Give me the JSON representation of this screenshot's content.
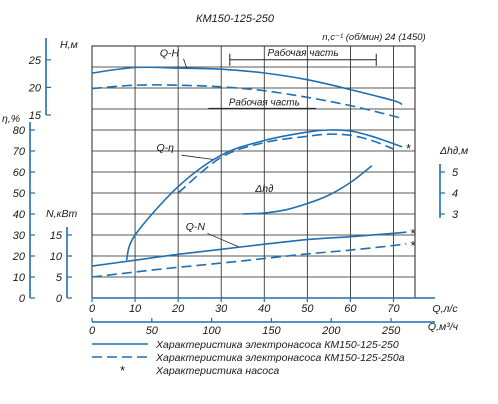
{
  "chart_data": {
    "type": "line",
    "title": "КМ150-125-250",
    "subtitle": "n,с⁻¹ (об/мин) 24 (1450)",
    "colors": {
      "line": "#1f6fb4",
      "grid": "#222222",
      "text": "#1a1a1a"
    },
    "x_axes": {
      "flow_ls": {
        "label": "Q,л/с",
        "range": [
          0,
          75
        ],
        "ticks": [
          0,
          10,
          20,
          30,
          40,
          50,
          60,
          70
        ]
      },
      "flow_m3h": {
        "label": "Q,м³/ч",
        "ticks": [
          0,
          50,
          100,
          150,
          200,
          250
        ]
      }
    },
    "y_axes": {
      "head": {
        "label": "H,м",
        "range": [
          15,
          27.5
        ],
        "ticks": [
          15,
          20,
          25
        ]
      },
      "efficiency": {
        "label": "η,%",
        "range": [
          0,
          80
        ],
        "ticks": [
          0,
          10,
          20,
          30,
          40,
          50,
          60,
          70,
          80
        ]
      },
      "power": {
        "label": "N,кВт",
        "range": [
          0,
          15
        ],
        "ticks": [
          0,
          5,
          10,
          15
        ]
      },
      "npsh": {
        "label": "Δh∂,м",
        "range": [
          3,
          5
        ],
        "ticks": [
          3,
          4,
          5
        ]
      }
    },
    "series": [
      {
        "axis": "head",
        "label": "Q-H",
        "style": "solid",
        "x": [
          0,
          10,
          20,
          30,
          40,
          50,
          60,
          70,
          72
        ],
        "y": [
          22.6,
          23.6,
          23.5,
          23.3,
          22.6,
          21.4,
          19.6,
          17.6,
          16.9
        ]
      },
      {
        "axis": "head",
        "style": "dashed",
        "x": [
          0,
          10,
          20,
          30,
          40,
          50,
          60,
          70,
          72
        ],
        "y": [
          19.8,
          20.4,
          20.4,
          20.1,
          19.4,
          18.2,
          16.7,
          14.8,
          14.3
        ]
      },
      {
        "axis": "efficiency",
        "label": "Q-η",
        "style": "solid",
        "x": [
          8,
          10,
          20,
          30,
          40,
          50,
          55,
          60,
          65,
          72
        ],
        "y": [
          18,
          30,
          53,
          68,
          75,
          79,
          80,
          79.5,
          77,
          72
        ]
      },
      {
        "axis": "efficiency",
        "style": "dashed",
        "x": [
          20,
          30,
          40,
          50,
          55,
          60,
          65,
          70
        ],
        "y": [
          50,
          67,
          74,
          77,
          78,
          77.5,
          75,
          71
        ]
      },
      {
        "axis": "npsh",
        "label": "Δh∂",
        "style": "solid",
        "x": [
          35,
          40,
          45,
          50,
          55,
          60,
          65
        ],
        "y": [
          3.0,
          3.05,
          3.2,
          3.5,
          3.9,
          4.5,
          5.3
        ]
      },
      {
        "axis": "power",
        "label": "Q-N",
        "style": "solid",
        "x": [
          0,
          10,
          20,
          30,
          40,
          50,
          60,
          70,
          73
        ],
        "y": [
          7.6,
          9,
          10.4,
          11.6,
          12.8,
          13.9,
          14.6,
          15.4,
          15.7
        ]
      },
      {
        "axis": "power",
        "style": "dashed",
        "x": [
          0,
          10,
          20,
          30,
          40,
          50,
          60,
          70,
          73
        ],
        "y": [
          5,
          6.2,
          7.3,
          8.3,
          9.4,
          10.5,
          11.4,
          12.5,
          12.9
        ]
      }
    ],
    "annotations": {
      "working_part_top": "Рабочая часть",
      "working_part_bottom": "Рабочая часть"
    },
    "legend": {
      "placement": "bottom",
      "items": [
        {
          "style": "solid",
          "label": "Характеристика электронасоса КМ150-125-250"
        },
        {
          "style": "dashed",
          "label": "Характеристика электронасоса КМ150-125-250а"
        },
        {
          "style": "star",
          "label": "Характеристика насоса"
        }
      ]
    }
  }
}
